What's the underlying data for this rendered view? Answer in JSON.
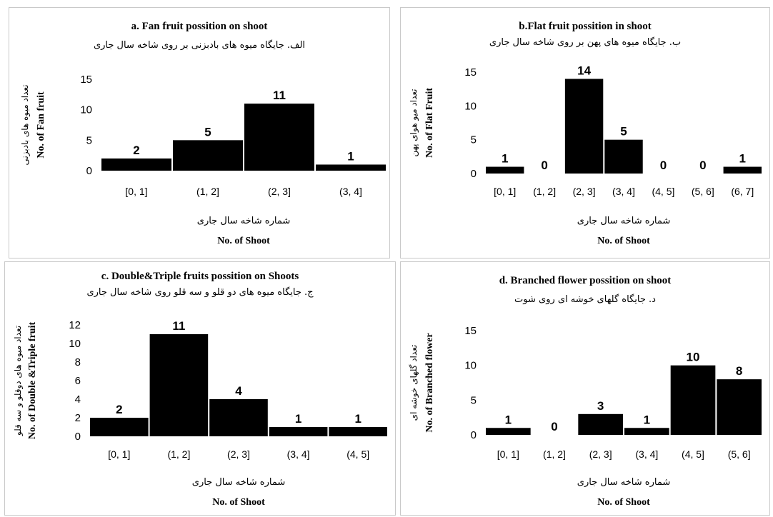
{
  "chart_data": [
    {
      "type": "bar",
      "title": "a. Fan fruit possition on shoot",
      "subtitle": "الف. جایگاه میوه های بادبزنی بر روی شاخه سال جاری",
      "xlabel": "No. of Shoot",
      "xlabel_fa": "شماره شاخه سال جاری",
      "ylabel": "No. of Fan fruit",
      "ylabel_fa": "تعداد میوه های بادبزنی",
      "categories": [
        "[0, 1]",
        "(1, 2]",
        "(2, 3]",
        "(3, 4]"
      ],
      "values": [
        2,
        5,
        11,
        1
      ],
      "data_labels": [
        "2",
        "5",
        "11",
        "1"
      ],
      "ylim": [
        0,
        15
      ],
      "yticks": [
        0,
        5,
        10,
        15
      ],
      "ytick_labels": [
        "0",
        "5",
        "10",
        "15"
      ],
      "bar_color": "#000000",
      "grid": false,
      "legend": "none"
    },
    {
      "type": "bar",
      "title": "b.Flat fruit possition in shoot",
      "subtitle": "ب. جایگاه میوه های پهن بر روی شاخه سال جاری",
      "xlabel": "No. of Shoot",
      "xlabel_fa": "شماره شاخه سال جاری",
      "ylabel": "No. of Flat Fruit",
      "ylabel_fa": "تعداد میو هوای پهن",
      "categories": [
        "[0, 1]",
        "(1, 2]",
        "(2, 3]",
        "(3, 4]",
        "(4, 5]",
        "(5, 6]",
        "(6, 7]"
      ],
      "values": [
        1,
        0,
        14,
        5,
        0,
        0,
        1
      ],
      "data_labels": [
        "1",
        "0",
        "14",
        "5",
        "0",
        "0",
        "1"
      ],
      "ylim": [
        0,
        15
      ],
      "yticks": [
        0,
        5,
        10,
        15
      ],
      "ytick_labels": [
        "0",
        "5",
        "10",
        "15"
      ],
      "bar_color": "#000000",
      "grid": false,
      "legend": "none"
    },
    {
      "type": "bar",
      "title": "c. Double&Triple fruits possition on Shoots",
      "subtitle": "ج. جایگاه میوه های دو قلو و سه قلو روی شاخه سال جاری",
      "xlabel": "No. of Shoot",
      "xlabel_fa": "شماره شاخه سال جاری",
      "ylabel": "No. of Double &Triple fruit",
      "ylabel_fa": "تعداد میوه های دوقلو و سه قلو",
      "categories": [
        "[0, 1]",
        "(1, 2]",
        "(2, 3]",
        "(3, 4]",
        "(4, 5]"
      ],
      "values": [
        2,
        11,
        4,
        1,
        1
      ],
      "data_labels": [
        "2",
        "11",
        "4",
        "1",
        "1"
      ],
      "ylim": [
        0,
        12
      ],
      "yticks": [
        0,
        2,
        4,
        6,
        8,
        10,
        12
      ],
      "ytick_labels": [
        "0",
        "2",
        "4",
        "6",
        "8",
        "10",
        "12"
      ],
      "bar_color": "#000000",
      "grid": false,
      "legend": "none"
    },
    {
      "type": "bar",
      "title": "d. Branched flower possition  on shoot",
      "subtitle": "د. جایگاه گلهای خوشه ای روی شوت",
      "xlabel": "No. of Shoot",
      "xlabel_fa": "شماره شاخه سال جاری",
      "ylabel": "No. of Branched flower",
      "ylabel_fa": "تعداد گلهای خوشه ای",
      "categories": [
        "[0, 1]",
        "(1, 2]",
        "(2, 3]",
        "(3, 4]",
        "(4, 5]",
        "(5, 6]"
      ],
      "values": [
        1,
        0,
        3,
        1,
        10,
        8
      ],
      "data_labels": [
        "1",
        "0",
        "3",
        "1",
        "10",
        "8"
      ],
      "ylim": [
        0,
        15
      ],
      "yticks": [
        0,
        5,
        10,
        15
      ],
      "ytick_labels": [
        "0",
        "5",
        "10",
        "15"
      ],
      "bar_color": "#000000",
      "grid": false,
      "legend": "none"
    }
  ]
}
